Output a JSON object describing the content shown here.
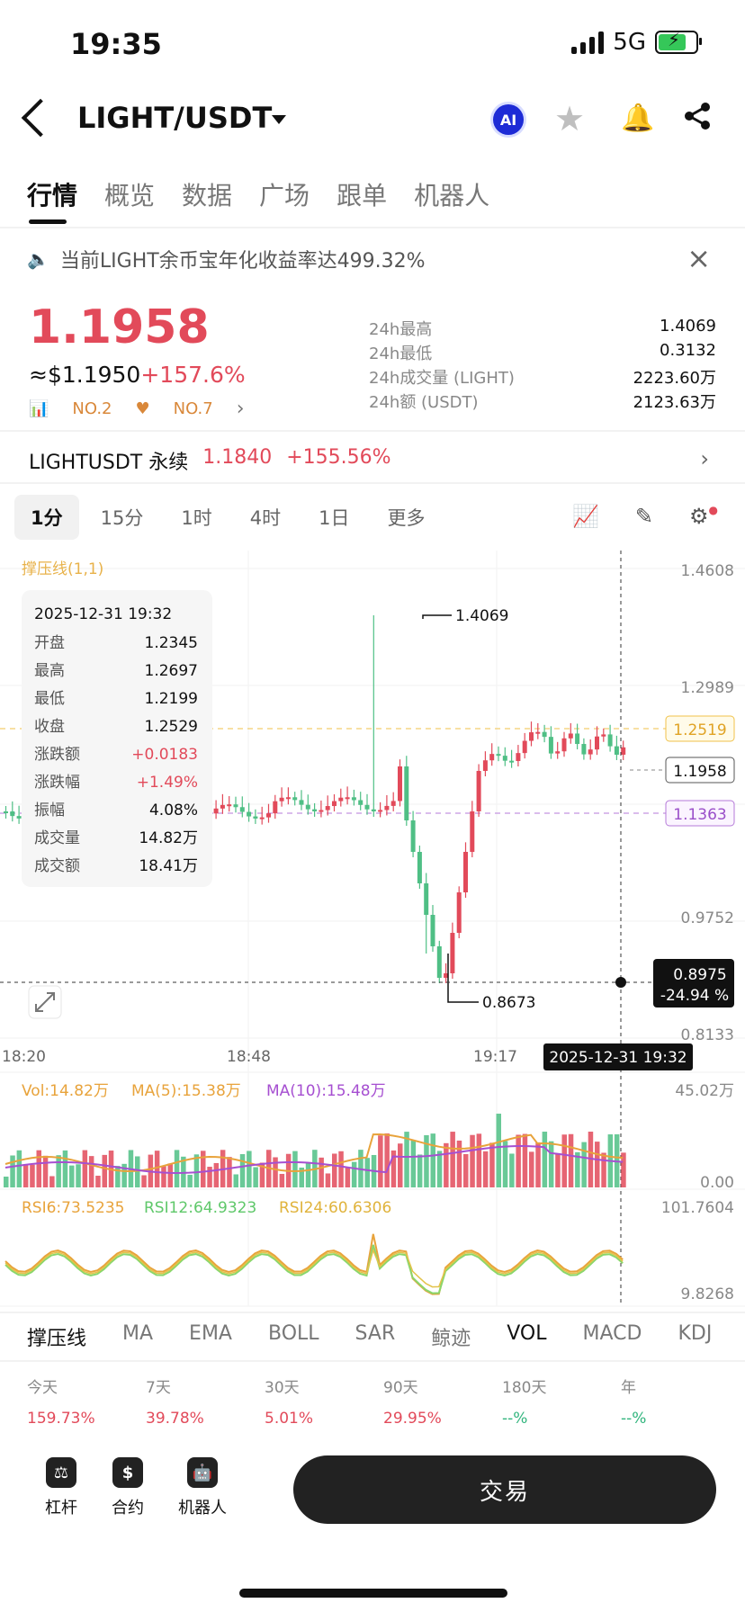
{
  "status_bar": {
    "time": "19:35",
    "network": "5G"
  },
  "header": {
    "pair": "LIGHT/USDT",
    "ai_label": "AI"
  },
  "tabs": [
    {
      "label": "行情",
      "active": true
    },
    {
      "label": "概览"
    },
    {
      "label": "数据"
    },
    {
      "label": "广场"
    },
    {
      "label": "跟单"
    },
    {
      "label": "机器人"
    }
  ],
  "notice": {
    "text": "当前LIGHT余币宝年化收益率达499.32%"
  },
  "price": {
    "last": "1.1958",
    "usd": "≈$1.1950",
    "change_pct": "+157.6%",
    "rank1": "NO.2",
    "rank2": "NO.7"
  },
  "stats": [
    {
      "label": "24h最高",
      "value": "1.4069"
    },
    {
      "label": "24h最低",
      "value": "0.3132"
    },
    {
      "label": "24h成交量 (LIGHT)",
      "value": "2223.60万"
    },
    {
      "label": "24h额 (USDT)",
      "value": "2123.63万"
    }
  ],
  "perp": {
    "name": "LIGHTUSDT 永续",
    "price": "1.1840",
    "change": "+155.56%"
  },
  "timeframes": [
    {
      "label": "1分",
      "active": true
    },
    {
      "label": "15分"
    },
    {
      "label": "1时"
    },
    {
      "label": "4时"
    },
    {
      "label": "1日"
    },
    {
      "label": "更多"
    }
  ],
  "chart": {
    "indicator_label": "撑压线(1,1)",
    "y_ticks": [
      "1.4608",
      "1.2989",
      "0.9752",
      "0.8133"
    ],
    "x_ticks": [
      "18:20",
      "18:48",
      "19:17"
    ],
    "crosshair_time": "2025-12-31 19:32",
    "crosshair_price": "0.8975",
    "crosshair_pct": "-24.94 %",
    "resistance": "1.2519",
    "last_price": "1.1958",
    "support": "1.1363",
    "high_mark": "1.4069",
    "low_mark": "0.8673",
    "tooltip": {
      "time": "2025-12-31 19:32",
      "rows": [
        {
          "label": "开盘",
          "value": "1.2345"
        },
        {
          "label": "最高",
          "value": "1.2697"
        },
        {
          "label": "最低",
          "value": "1.2199"
        },
        {
          "label": "收盘",
          "value": "1.2529"
        },
        {
          "label": "涨跌额",
          "value": "+0.0183",
          "red": true
        },
        {
          "label": "涨跌幅",
          "value": "+1.49%",
          "red": true
        },
        {
          "label": "振幅",
          "value": "4.08%"
        },
        {
          "label": "成交量",
          "value": "14.82万"
        },
        {
          "label": "成交额",
          "value": "18.41万"
        }
      ]
    },
    "vol": {
      "vol": "Vol:14.82万",
      "ma5": "MA(5):15.38万",
      "ma10": "MA(10):15.48万",
      "max": "45.02万",
      "min": "0.00"
    },
    "rsi": {
      "rsi6": "RSI6:73.5235",
      "rsi12": "RSI12:64.9323",
      "rsi24": "RSI24:60.6306",
      "max": "101.7604",
      "min": "9.8268"
    },
    "colors": {
      "up": "#4fbf85",
      "down": "#e24a5a",
      "ma5": "#e8a33b",
      "ma10": "#a64fd1"
    }
  },
  "indicator_tabs": [
    "撑压线",
    "MA",
    "EMA",
    "BOLL",
    "SAR",
    "鲸迹",
    "VOL",
    "MACD",
    "KDJ"
  ],
  "performance": [
    {
      "label": "今天",
      "value": "159.73%",
      "color": "red"
    },
    {
      "label": "7天",
      "value": "39.78%",
      "color": "red"
    },
    {
      "label": "30天",
      "value": "5.01%",
      "color": "red"
    },
    {
      "label": "90天",
      "value": "29.95%",
      "color": "red"
    },
    {
      "label": "180天",
      "value": "--%",
      "color": "green"
    },
    {
      "label": "年",
      "value": "--%",
      "color": "green"
    }
  ],
  "bottom_nav": [
    {
      "label": "杠杆",
      "icon": "leverage-icon"
    },
    {
      "label": "合约",
      "icon": "contract-icon"
    },
    {
      "label": "机器人",
      "icon": "robot-icon"
    }
  ],
  "trade_button": "交易"
}
